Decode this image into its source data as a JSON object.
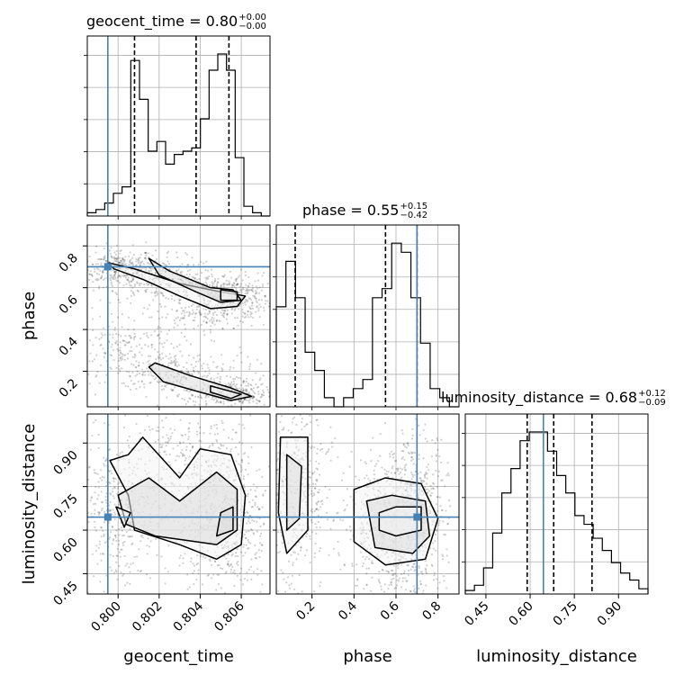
{
  "chart_data": {
    "type": "corner",
    "parameters": [
      {
        "name": "geocent_time",
        "title": "geocent_time = 0.80",
        "title_plus": "+0.00",
        "title_minus": "−0.00",
        "axis_label": "geocent_time",
        "range": [
          0.7985,
          0.8074
        ],
        "tick_values": [
          0.8,
          0.802,
          0.804,
          0.806
        ],
        "tick_labels": [
          "0.800",
          "0.802",
          "0.804",
          "0.806"
        ],
        "truth": 0.7995,
        "quantiles": [
          0.8008,
          0.8038,
          0.8054
        ],
        "hist": [
          1,
          2,
          4,
          7,
          9,
          48,
          36,
          20,
          23,
          16,
          19,
          20,
          21,
          30,
          45,
          50,
          45,
          18,
          3,
          1,
          0
        ]
      },
      {
        "name": "phase",
        "title": "phase = 0.55",
        "title_plus": "+0.15",
        "title_minus": "−0.42",
        "axis_label": "phase",
        "range": [
          0.03,
          0.9
        ],
        "tick_values": [
          0.2,
          0.4,
          0.6,
          0.8
        ],
        "tick_labels": [
          "0.2",
          "0.4",
          "0.6",
          "0.8"
        ],
        "truth": 0.7,
        "quantiles": [
          0.12,
          0.55,
          0.7
        ],
        "hist": [
          11,
          16,
          12,
          6,
          4,
          1,
          0,
          1,
          2,
          3,
          12,
          13,
          18,
          17,
          12,
          7,
          2,
          1,
          0
        ]
      },
      {
        "name": "luminosity_distance",
        "title": "luminosity_distance = 0.68",
        "title_plus": "+0.12",
        "title_minus": "−0.09",
        "axis_label": "luminosity_distance",
        "range": [
          0.38,
          1.0
        ],
        "tick_values": [
          0.45,
          0.6,
          0.75,
          0.9
        ],
        "tick_labels": [
          "0.45",
          "0.60",
          "0.75",
          "0.90"
        ],
        "truth": 0.645,
        "quantiles": [
          0.59,
          0.68,
          0.81
        ],
        "hist": [
          0.2,
          0.5,
          1.5,
          3.5,
          5.8,
          7.2,
          8.8,
          9.3,
          9.3,
          8.2,
          6.8,
          5.8,
          4.5,
          4.0,
          3.2,
          2.5,
          1.8,
          1.2,
          0.8,
          0.3
        ]
      }
    ],
    "truth_color": "#4682b4",
    "grid": true
  }
}
